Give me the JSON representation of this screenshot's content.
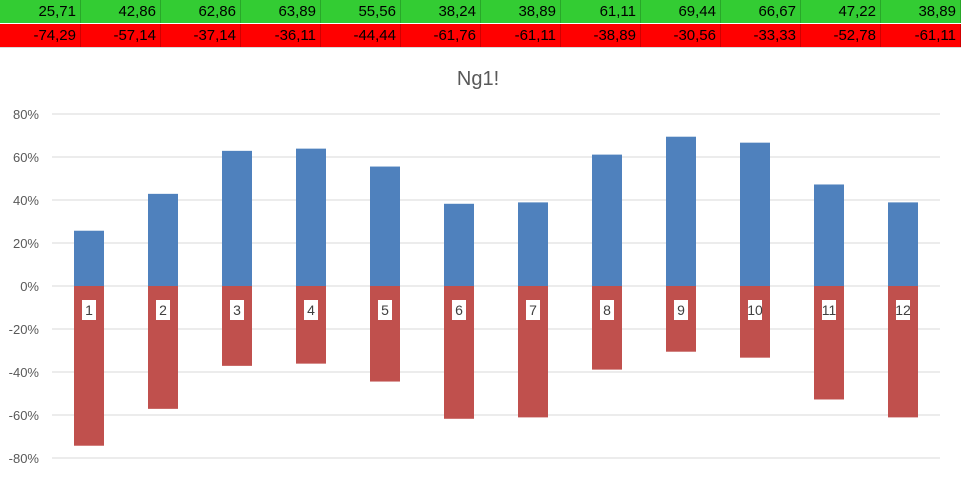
{
  "table": {
    "positive_row": [
      "25,71",
      "42,86",
      "62,86",
      "63,89",
      "55,56",
      "38,24",
      "38,89",
      "61,11",
      "69,44",
      "66,67",
      "47,22",
      "38,89"
    ],
    "negative_row": [
      "-74,29",
      "-57,14",
      "-37,14",
      "-36,11",
      "-44,44",
      "-61,76",
      "-61,11",
      "-38,89",
      "-30,56",
      "-33,33",
      "-52,78",
      "-61,11"
    ],
    "colors": {
      "positive_bg": "#33cc33",
      "negative_bg": "#ff0000"
    }
  },
  "chart_data": {
    "type": "bar",
    "stacked": true,
    "title": "Ng1!",
    "categories": [
      "1",
      "2",
      "3",
      "4",
      "5",
      "6",
      "7",
      "8",
      "9",
      "10",
      "11",
      "12"
    ],
    "series": [
      {
        "values": [
          25.71,
          42.86,
          62.86,
          63.89,
          55.56,
          38.24,
          38.89,
          61.11,
          69.44,
          66.67,
          47.22,
          38.89
        ],
        "color": "#4f81bd"
      },
      {
        "values": [
          -74.29,
          -57.14,
          -37.14,
          -36.11,
          -44.44,
          -61.76,
          -61.11,
          -38.89,
          -30.56,
          -33.33,
          -52.78,
          -61.11
        ],
        "color": "#c0504d"
      }
    ],
    "yticks": [
      "80%",
      "60%",
      "40%",
      "20%",
      "0%",
      "-20%",
      "-40%",
      "-60%",
      "-80%"
    ],
    "ylim": [
      -80,
      80
    ],
    "grid": true,
    "legend": "none"
  }
}
